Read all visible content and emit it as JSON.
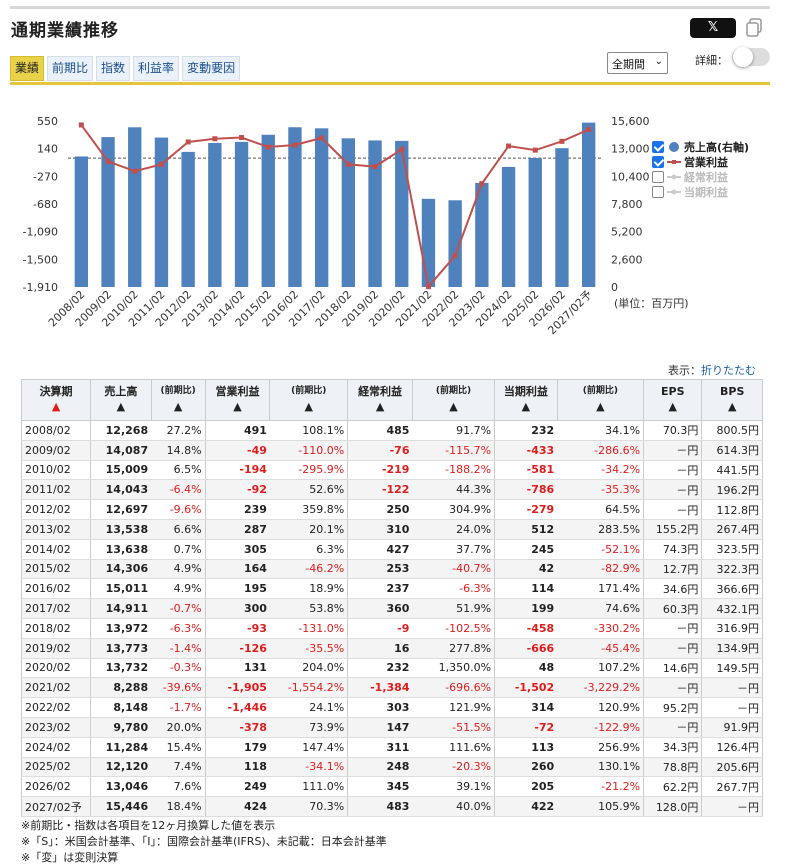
{
  "title": "通期業績推移",
  "share": {
    "x_label": "𝕏"
  },
  "tabs": [
    "業績",
    "前期比",
    "指数",
    "利益率",
    "変動要因"
  ],
  "period_select": "全期間",
  "detail_label": "詳細：",
  "legend": [
    {
      "label": "売上高(右軸)",
      "checked": true
    },
    {
      "label": "営業利益",
      "checked": true
    },
    {
      "label": "経常利益",
      "checked": false
    },
    {
      "label": "当期利益",
      "checked": false
    }
  ],
  "unit_label": "(単位：百万円)",
  "display_label": "表示：",
  "fold_label": "折りたたむ",
  "colors": {
    "bar": "#4f81bd",
    "line": "#c0504d",
    "accent": "#e3c63a"
  },
  "chart_data": {
    "type": "bar+line",
    "categories": [
      "2008/02",
      "2009/02",
      "2010/02",
      "2011/02",
      "2012/02",
      "2013/02",
      "2014/02",
      "2015/02",
      "2016/02",
      "2017/02",
      "2018/02",
      "2019/02",
      "2020/02",
      "2021/02",
      "2022/02",
      "2023/02",
      "2024/02",
      "2025/02",
      "2026/02",
      "2027/02予"
    ],
    "series": [
      {
        "name": "売上高(右軸)",
        "type": "bar",
        "axis": "right",
        "values": [
          12268,
          14087,
          15009,
          14043,
          12697,
          13538,
          13638,
          14306,
          15011,
          14911,
          13972,
          13773,
          13732,
          8288,
          8148,
          9780,
          11284,
          12120,
          13046,
          15446
        ]
      },
      {
        "name": "営業利益",
        "type": "line",
        "axis": "left",
        "values": [
          491,
          -49,
          -194,
          -92,
          239,
          287,
          305,
          164,
          195,
          300,
          -93,
          -126,
          131,
          -1905,
          -1446,
          -378,
          179,
          118,
          249,
          424
        ]
      }
    ],
    "left_axis": {
      "ticks": [
        "550",
        "140",
        "-270",
        "-680",
        "-1,090",
        "-1,500",
        "-1,910"
      ],
      "range": [
        -1910,
        550
      ]
    },
    "right_axis": {
      "ticks": [
        "15,600",
        "13,000",
        "10,400",
        "7,800",
        "5,200",
        "2,600",
        "0"
      ],
      "range": [
        0,
        15600
      ]
    }
  },
  "table": {
    "headers": [
      {
        "label": "決算期",
        "arrow": "▲",
        "arrow_red": true
      },
      {
        "label": "売上高",
        "arrow": "▲"
      },
      {
        "label": "(前期比)",
        "arrow": "▲",
        "sub": true
      },
      {
        "label": "営業利益",
        "arrow": "▲"
      },
      {
        "label": "(前期比)",
        "arrow": "▲",
        "sub": true
      },
      {
        "label": "経常利益",
        "arrow": "▲"
      },
      {
        "label": "(前期比)",
        "arrow": "▲",
        "sub": true
      },
      {
        "label": "当期利益",
        "arrow": "▲"
      },
      {
        "label": "(前期比)",
        "arrow": "▲",
        "sub": true
      },
      {
        "label": "EPS",
        "arrow": "▲"
      },
      {
        "label": "BPS",
        "arrow": "▲"
      }
    ],
    "rows": [
      [
        "2008/02",
        "12,268",
        "27.2%",
        "491",
        "108.1%",
        "485",
        "91.7%",
        "232",
        "34.1%",
        "70.3円",
        "800.5円"
      ],
      [
        "2009/02",
        "14,087",
        "14.8%",
        "-49",
        "-110.0%",
        "-76",
        "-115.7%",
        "-433",
        "-286.6%",
        "－円",
        "614.3円"
      ],
      [
        "2010/02",
        "15,009",
        "6.5%",
        "-194",
        "-295.9%",
        "-219",
        "-188.2%",
        "-581",
        "-34.2%",
        "－円",
        "441.5円"
      ],
      [
        "2011/02",
        "14,043",
        "-6.4%",
        "-92",
        "52.6%",
        "-122",
        "44.3%",
        "-786",
        "-35.3%",
        "－円",
        "196.2円"
      ],
      [
        "2012/02",
        "12,697",
        "-9.6%",
        "239",
        "359.8%",
        "250",
        "304.9%",
        "-279",
        "64.5%",
        "－円",
        "112.8円"
      ],
      [
        "2013/02",
        "13,538",
        "6.6%",
        "287",
        "20.1%",
        "310",
        "24.0%",
        "512",
        "283.5%",
        "155.2円",
        "267.4円"
      ],
      [
        "2014/02",
        "13,638",
        "0.7%",
        "305",
        "6.3%",
        "427",
        "37.7%",
        "245",
        "-52.1%",
        "74.3円",
        "323.5円"
      ],
      [
        "2015/02",
        "14,306",
        "4.9%",
        "164",
        "-46.2%",
        "253",
        "-40.7%",
        "42",
        "-82.9%",
        "12.7円",
        "322.3円"
      ],
      [
        "2016/02",
        "15,011",
        "4.9%",
        "195",
        "18.9%",
        "237",
        "-6.3%",
        "114",
        "171.4%",
        "34.6円",
        "366.6円"
      ],
      [
        "2017/02",
        "14,911",
        "-0.7%",
        "300",
        "53.8%",
        "360",
        "51.9%",
        "199",
        "74.6%",
        "60.3円",
        "432.1円"
      ],
      [
        "2018/02",
        "13,972",
        "-6.3%",
        "-93",
        "-131.0%",
        "-9",
        "-102.5%",
        "-458",
        "-330.2%",
        "－円",
        "316.9円"
      ],
      [
        "2019/02",
        "13,773",
        "-1.4%",
        "-126",
        "-35.5%",
        "16",
        "277.8%",
        "-666",
        "-45.4%",
        "－円",
        "134.9円"
      ],
      [
        "2020/02",
        "13,732",
        "-0.3%",
        "131",
        "204.0%",
        "232",
        "1,350.0%",
        "48",
        "107.2%",
        "14.6円",
        "149.5円"
      ],
      [
        "2021/02",
        "8,288",
        "-39.6%",
        "-1,905",
        "-1,554.2%",
        "-1,384",
        "-696.6%",
        "-1,502",
        "-3,229.2%",
        "－円",
        "－円"
      ],
      [
        "2022/02",
        "8,148",
        "-1.7%",
        "-1,446",
        "24.1%",
        "303",
        "121.9%",
        "314",
        "120.9%",
        "95.2円",
        "－円"
      ],
      [
        "2023/02",
        "9,780",
        "20.0%",
        "-378",
        "73.9%",
        "147",
        "-51.5%",
        "-72",
        "-122.9%",
        "－円",
        "91.9円"
      ],
      [
        "2024/02",
        "11,284",
        "15.4%",
        "179",
        "147.4%",
        "311",
        "111.6%",
        "113",
        "256.9%",
        "34.3円",
        "126.4円"
      ],
      [
        "2025/02",
        "12,120",
        "7.4%",
        "118",
        "-34.1%",
        "248",
        "-20.3%",
        "260",
        "130.1%",
        "78.8円",
        "205.6円"
      ],
      [
        "2026/02",
        "13,046",
        "7.6%",
        "249",
        "111.0%",
        "345",
        "39.1%",
        "205",
        "-21.2%",
        "62.2円",
        "267.7円"
      ],
      [
        "2027/02予",
        "15,446",
        "18.4%",
        "424",
        "70.3%",
        "483",
        "40.0%",
        "422",
        "105.9%",
        "128.0円",
        "－円"
      ]
    ]
  },
  "notes": [
    "※前期比・指数は各項目を12ヶ月換算した値を表示",
    "※「S」：米国会計基準、「I」：国際会計基準(IFRS)、未記載：日本会計基準",
    "※「変」は変則決算"
  ]
}
